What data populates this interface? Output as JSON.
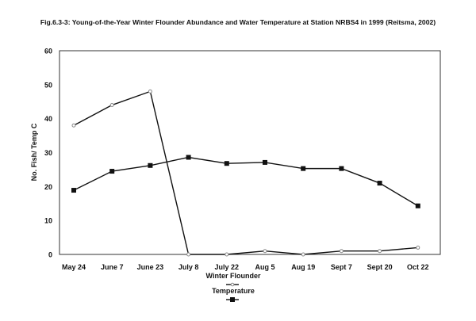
{
  "chart_data": {
    "type": "line",
    "title": "Fig.6.3-3: Young-of-the-Year Winter Flounder Abundance and Water Temperature at Station NRBS4 in 1999 (Reitsma, 2002)",
    "xlabel": "",
    "ylabel": "No. Fish/ Temp C",
    "ylim": [
      0,
      60
    ],
    "yticks": [
      0,
      10,
      20,
      30,
      40,
      50,
      60
    ],
    "categories": [
      "May 24",
      "June 7",
      "June 23",
      "July 8",
      "July 22",
      "Aug 5",
      "Aug 19",
      "Sept 7",
      "Sept 20",
      "Oct 22"
    ],
    "series": [
      {
        "name": "Winter Flounder",
        "marker": "diamond",
        "values": [
          38,
          44,
          48,
          0,
          0,
          1,
          0,
          1,
          1,
          2
        ]
      },
      {
        "name": "Temperature",
        "marker": "square",
        "values": [
          18.9,
          24.5,
          26.2,
          28.6,
          26.8,
          27.1,
          25.3,
          25.3,
          21,
          14.3
        ]
      }
    ],
    "grid": false,
    "legend": "bottom-center"
  }
}
